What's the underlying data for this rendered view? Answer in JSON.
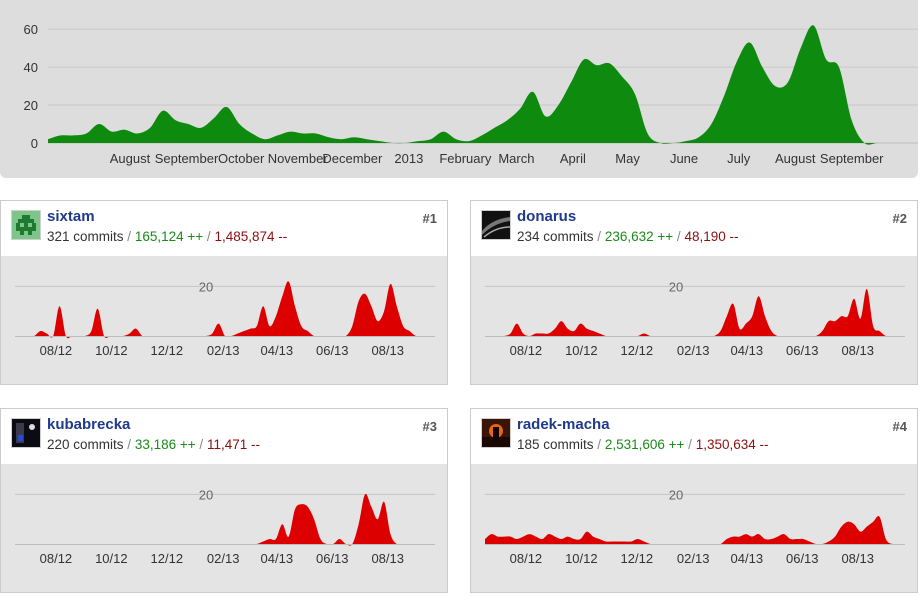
{
  "chart_data": [
    {
      "type": "area",
      "title": "",
      "color": "#0e8a0e",
      "yticks": [
        0,
        20,
        40,
        60
      ],
      "ylim": [
        0,
        68
      ],
      "grid": true,
      "x_labels": [
        "August",
        "September",
        "October",
        "November",
        "December",
        "2013",
        "February",
        "March",
        "April",
        "May",
        "June",
        "July",
        "August",
        "September"
      ],
      "x": [
        "2012-06-17",
        "2012-06-24",
        "2012-07-01",
        "2012-07-08",
        "2012-07-15",
        "2012-07-22",
        "2012-07-29",
        "2012-08-05",
        "2012-08-12",
        "2012-08-19",
        "2012-08-26",
        "2012-09-02",
        "2012-09-09",
        "2012-09-16",
        "2012-09-23",
        "2012-09-30",
        "2012-10-07",
        "2012-10-14",
        "2012-10-21",
        "2012-10-28",
        "2012-11-04",
        "2012-11-11",
        "2012-11-18",
        "2012-11-25",
        "2012-12-02",
        "2012-12-09",
        "2012-12-16",
        "2012-12-23",
        "2012-12-30",
        "2013-01-06",
        "2013-01-13",
        "2013-01-20",
        "2013-01-27",
        "2013-02-03",
        "2013-02-10",
        "2013-02-17",
        "2013-02-24",
        "2013-03-03",
        "2013-03-10",
        "2013-03-17",
        "2013-03-24",
        "2013-03-31",
        "2013-04-07",
        "2013-04-14",
        "2013-04-21",
        "2013-04-28",
        "2013-05-05",
        "2013-05-12",
        "2013-05-19",
        "2013-05-26",
        "2013-06-02",
        "2013-06-09",
        "2013-06-16",
        "2013-06-23",
        "2013-06-30",
        "2013-07-07",
        "2013-07-14",
        "2013-07-21",
        "2013-07-28",
        "2013-08-04",
        "2013-08-11",
        "2013-08-18",
        "2013-08-25",
        "2013-09-01",
        "2013-09-08",
        "2013-09-15",
        "2013-09-22"
      ],
      "values": [
        2,
        4,
        4,
        5,
        10,
        6,
        7,
        5,
        8,
        17,
        12,
        10,
        8,
        13,
        19,
        10,
        5,
        2,
        4,
        6,
        5,
        5,
        3,
        2,
        3,
        2,
        1,
        0,
        0,
        1,
        2,
        6,
        2,
        1,
        4,
        8,
        12,
        18,
        27,
        14,
        20,
        32,
        44,
        41,
        42,
        35,
        26,
        5,
        0,
        0,
        1,
        3,
        10,
        25,
        43,
        53,
        40,
        30,
        32,
        50,
        62,
        44,
        40,
        12,
        0,
        0,
        0
      ]
    },
    {
      "type": "area",
      "color": "#dd0000",
      "x_labels": [
        "08/12",
        "10/12",
        "12/12",
        "02/13",
        "04/13",
        "06/13",
        "08/13"
      ],
      "yticks": [
        20
      ],
      "ylim": [
        0,
        25
      ],
      "x": [
        "2012-06-17",
        "2012-06-24",
        "2012-07-01",
        "2012-07-08",
        "2012-07-15",
        "2012-07-22",
        "2012-07-29",
        "2012-08-05",
        "2012-08-12",
        "2012-08-19",
        "2012-08-26",
        "2012-09-02",
        "2012-09-09",
        "2012-09-16",
        "2012-09-23",
        "2012-09-30",
        "2012-10-07",
        "2012-10-14",
        "2012-10-21",
        "2012-10-28",
        "2012-11-04",
        "2012-11-11",
        "2012-11-18",
        "2012-11-25",
        "2012-12-02",
        "2012-12-09",
        "2012-12-16",
        "2012-12-23",
        "2012-12-30",
        "2013-01-06",
        "2013-01-13",
        "2013-01-20",
        "2013-01-27",
        "2013-02-03",
        "2013-02-10",
        "2013-02-17",
        "2013-02-24",
        "2013-03-03",
        "2013-03-10",
        "2013-03-17",
        "2013-03-24",
        "2013-03-31",
        "2013-04-07",
        "2013-04-14",
        "2013-04-21",
        "2013-04-28",
        "2013-05-05",
        "2013-05-12",
        "2013-05-19",
        "2013-05-26",
        "2013-06-02",
        "2013-06-09",
        "2013-06-16",
        "2013-06-23",
        "2013-06-30",
        "2013-07-07",
        "2013-07-14",
        "2013-07-21",
        "2013-07-28",
        "2013-08-04",
        "2013-08-11",
        "2013-08-18",
        "2013-08-25",
        "2013-09-01",
        "2013-09-08",
        "2013-09-15",
        "2013-09-22"
      ],
      "series": [
        {
          "values": [
            0,
            0,
            0,
            0,
            2,
            1,
            0,
            12,
            0,
            0,
            0,
            0,
            2,
            11,
            0,
            0,
            0,
            0,
            1,
            3,
            0,
            0,
            0,
            0,
            0,
            0,
            0,
            0,
            0,
            0,
            0,
            1,
            5,
            0,
            0,
            1,
            2,
            3,
            4,
            12,
            4,
            8,
            16,
            22,
            12,
            4,
            2,
            0,
            0,
            0,
            0,
            0,
            0,
            4,
            14,
            17,
            12,
            6,
            10,
            21,
            12,
            4,
            2,
            0,
            0,
            0,
            0
          ]
        },
        {
          "values": [
            0,
            0,
            0,
            0,
            1,
            5,
            1,
            0,
            1,
            1,
            1,
            3,
            6,
            3,
            2,
            5,
            3,
            2,
            1,
            0,
            0,
            0,
            0,
            0,
            0,
            1,
            0,
            0,
            0,
            0,
            0,
            0,
            0,
            0,
            0,
            0,
            0,
            2,
            8,
            13,
            3,
            5,
            8,
            16,
            8,
            2,
            0,
            0,
            0,
            0,
            0,
            0,
            0,
            2,
            6,
            6,
            8,
            8,
            15,
            7,
            19,
            4,
            2,
            0,
            0,
            0,
            0
          ]
        },
        {
          "values": [
            0,
            0,
            0,
            0,
            0,
            0,
            0,
            0,
            0,
            0,
            0,
            0,
            0,
            0,
            0,
            0,
            0,
            0,
            0,
            0,
            0,
            0,
            0,
            0,
            0,
            0,
            0,
            0,
            0,
            0,
            0,
            0,
            0,
            0,
            0,
            0,
            0,
            0,
            0,
            1,
            2,
            2,
            8,
            3,
            14,
            16,
            15,
            10,
            2,
            0,
            0,
            2,
            0,
            0,
            8,
            20,
            15,
            10,
            17,
            4,
            0,
            0,
            0,
            0,
            0,
            0,
            0
          ]
        },
        {
          "values": [
            2,
            4,
            3,
            3,
            3,
            2,
            3,
            4,
            3,
            2,
            4,
            3,
            2,
            3,
            2,
            2,
            5,
            3,
            2,
            1,
            1,
            1,
            1,
            1,
            2,
            1,
            0,
            0,
            0,
            0,
            0,
            0,
            0,
            0,
            0,
            0,
            0,
            0,
            2,
            3,
            3,
            4,
            3,
            4,
            2,
            2,
            3,
            4,
            2,
            2,
            2,
            1,
            0,
            0,
            1,
            3,
            7,
            9,
            8,
            5,
            7,
            9,
            11,
            2,
            0,
            0,
            0
          ]
        }
      ]
    }
  ],
  "contributors": [
    {
      "name": "sixtam",
      "commits": "321 commits",
      "additions": "165,124 ++",
      "deletions": "1,485,874 --",
      "rank": "#1",
      "avatar": "pixel-invader"
    },
    {
      "name": "donarus",
      "commits": "234 commits",
      "additions": "236,632 ++",
      "deletions": "48,190 --",
      "rank": "#2",
      "avatar": "dark-photo"
    },
    {
      "name": "kubabrecka",
      "commits": "220 commits",
      "additions": "33,186 ++",
      "deletions": "11,471 --",
      "rank": "#3",
      "avatar": "night-photo"
    },
    {
      "name": "radek-macha",
      "commits": "185 commits",
      "additions": "2,531,606 ++",
      "deletions": "1,350,634 --",
      "rank": "#4",
      "avatar": "sunset-photo"
    }
  ],
  "separator": "/"
}
